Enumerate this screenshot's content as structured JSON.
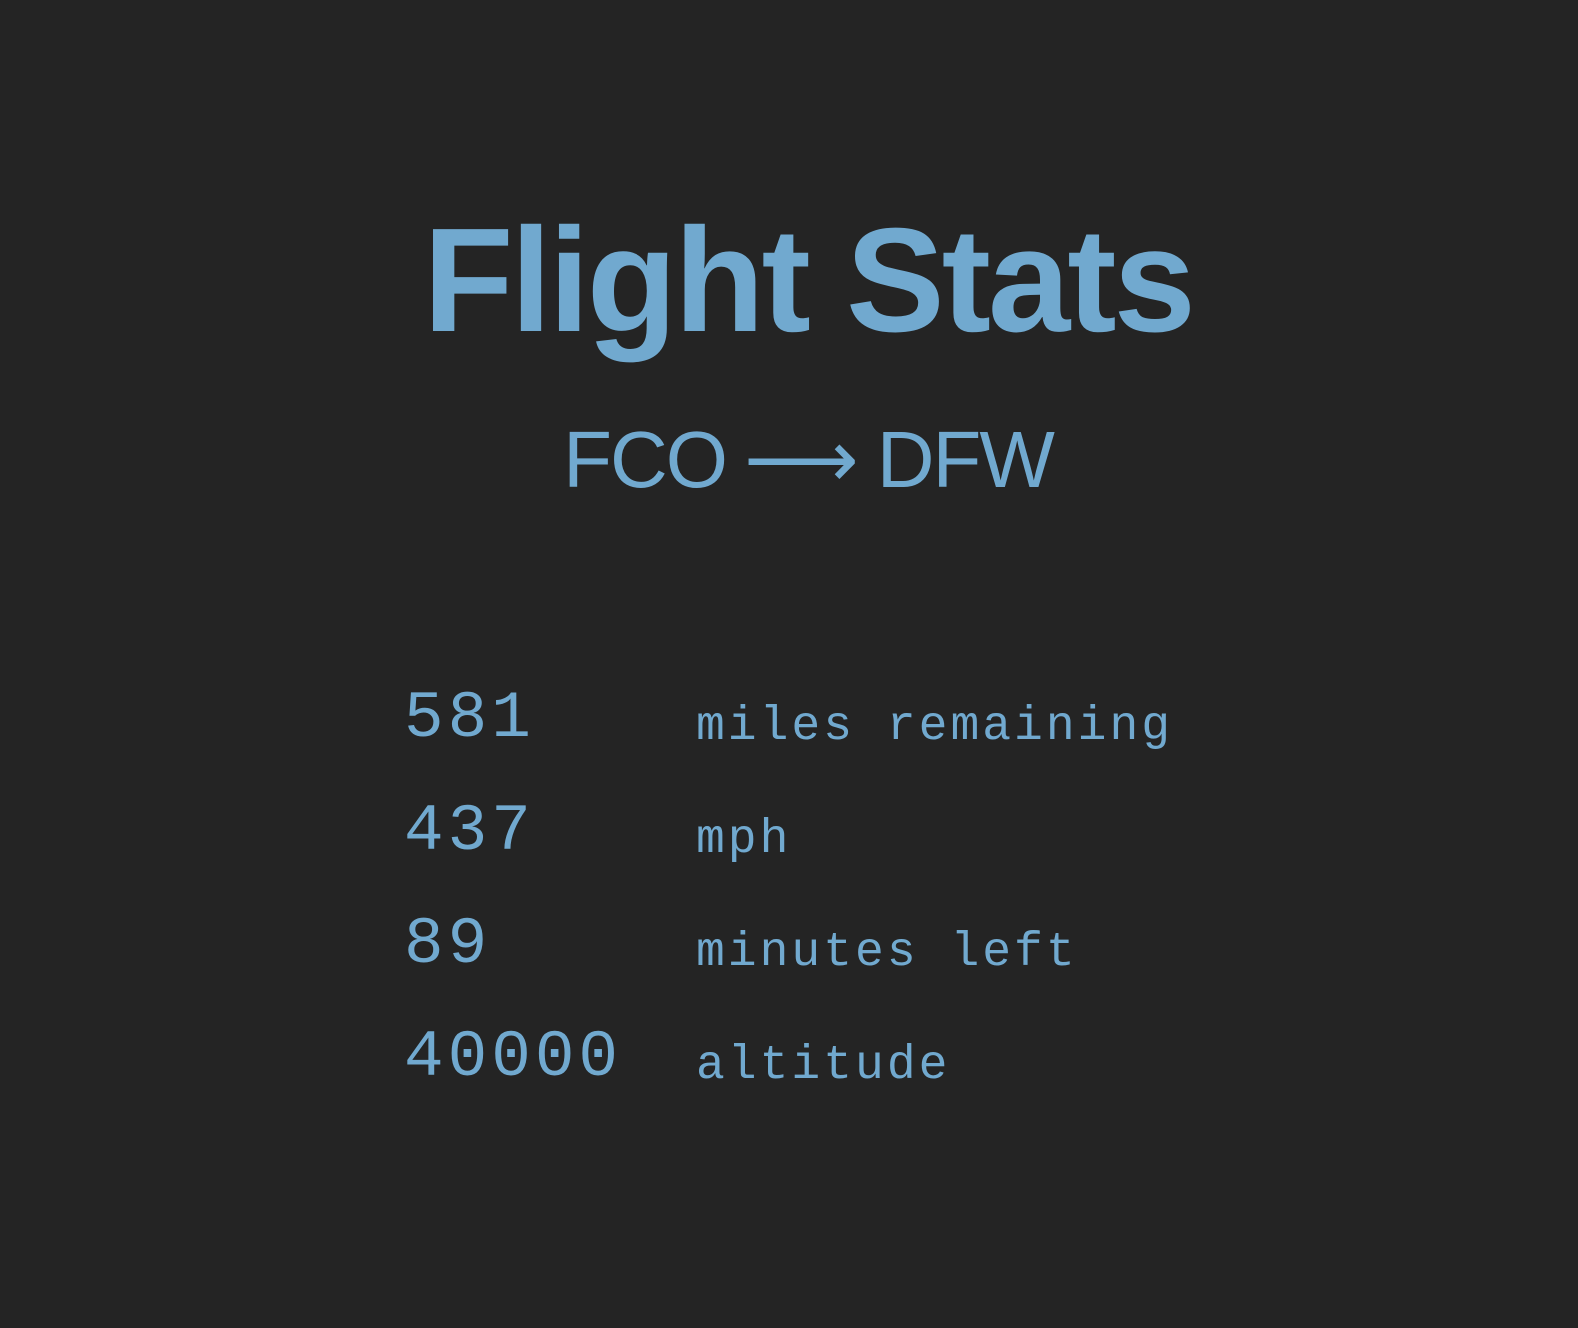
{
  "header": {
    "title": "Flight Stats",
    "origin": "FCO",
    "arrow": "⟶",
    "destination": "DFW"
  },
  "stats": [
    {
      "value": "581",
      "label": "miles remaining"
    },
    {
      "value": "437",
      "label": "mph"
    },
    {
      "value": "89",
      "label": "minutes left"
    },
    {
      "value": "40000",
      "label": "altitude"
    }
  ],
  "colors": {
    "background": "#242424",
    "accent": "#71a9cf"
  }
}
